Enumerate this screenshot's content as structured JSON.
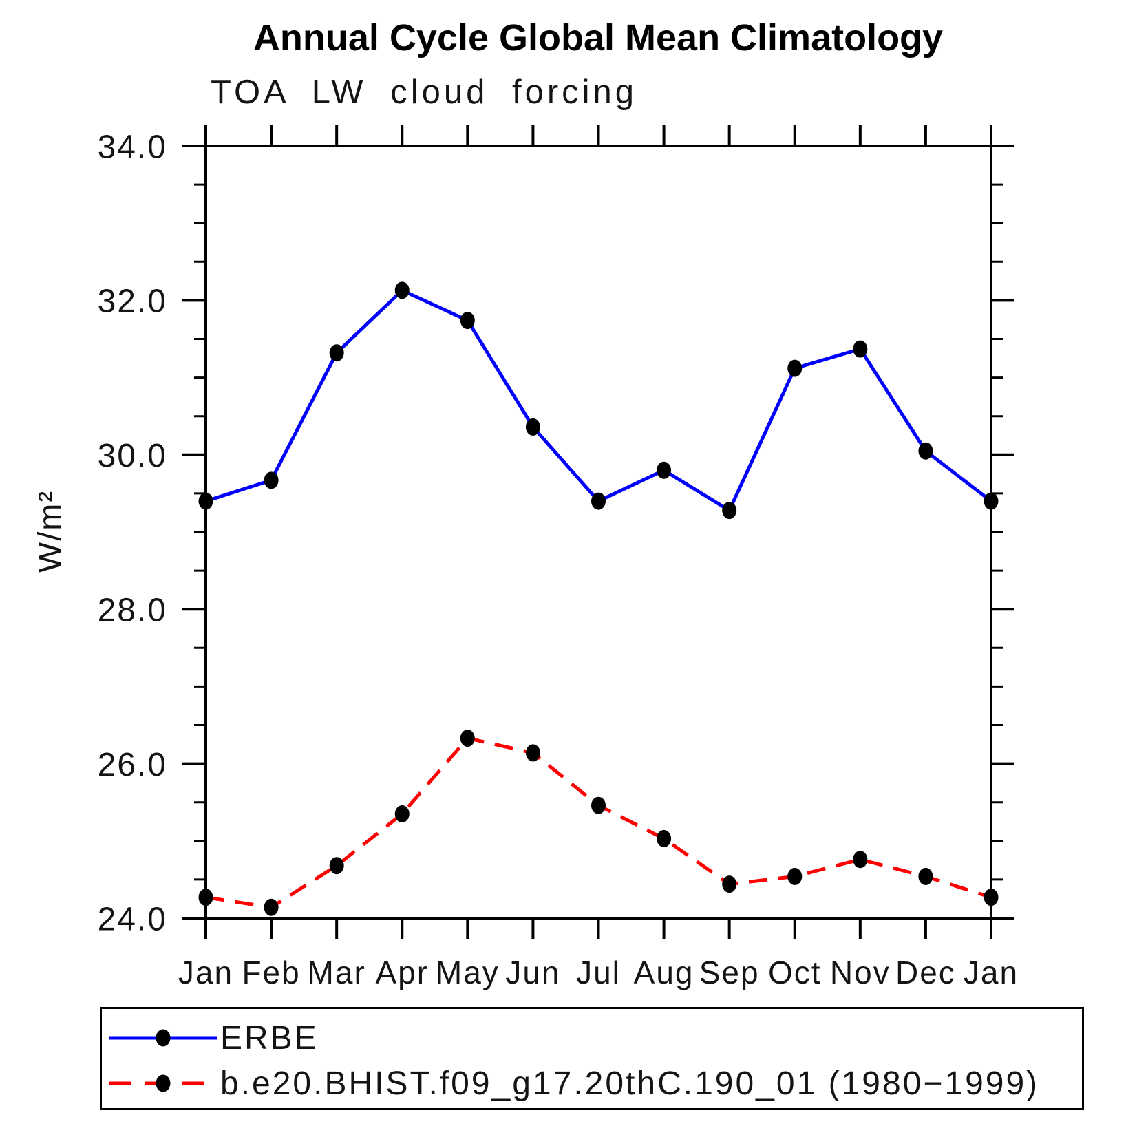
{
  "page": {
    "title": "Annual Cycle Global Mean Climatology",
    "subtitle": "TOA LW cloud forcing"
  },
  "axes": {
    "ylabel": "W/m²",
    "ytick_labels": [
      "24.0",
      "26.0",
      "28.0",
      "30.0",
      "32.0",
      "34.0"
    ]
  },
  "legend": {
    "items": [
      {
        "label": "ERBE"
      },
      {
        "label": "b.e20.BHIST.f09_g17.20thC.190_01 (1980−1999)"
      }
    ]
  },
  "chart_data": {
    "type": "line",
    "title": "Annual Cycle Global Mean Climatology",
    "subtitle": "TOA LW cloud forcing",
    "xlabel": "",
    "ylabel": "W/m²",
    "categories": [
      "Jan",
      "Feb",
      "Mar",
      "Apr",
      "May",
      "Jun",
      "Jul",
      "Aug",
      "Sep",
      "Oct",
      "Nov",
      "Dec",
      "Jan"
    ],
    "series": [
      {
        "name": "ERBE",
        "color": "#0000ff",
        "line_style": "solid",
        "marker": "filled-circle",
        "marker_color": "#000000",
        "values": [
          29.4,
          29.67,
          31.32,
          32.13,
          31.74,
          30.36,
          29.4,
          29.8,
          29.28,
          31.12,
          31.37,
          30.05,
          29.4
        ]
      },
      {
        "name": "b.e20.BHIST.f09_g17.20thC.190_01 (1980−1999)",
        "color": "#ff0000",
        "line_style": "dashed",
        "marker": "filled-circle",
        "marker_color": "#000000",
        "values": [
          24.27,
          24.14,
          24.68,
          25.35,
          26.33,
          26.14,
          25.46,
          25.03,
          24.44,
          24.54,
          24.76,
          24.54,
          24.27
        ]
      }
    ],
    "ylim": [
      24.0,
      34.0
    ],
    "ytick_major_interval": 2.0,
    "ytick_minor_interval": 0.5,
    "ytick_labels": [
      "24.0",
      "26.0",
      "28.0",
      "30.0",
      "32.0",
      "34.0"
    ],
    "grid": false,
    "legend_position": "bottom"
  }
}
